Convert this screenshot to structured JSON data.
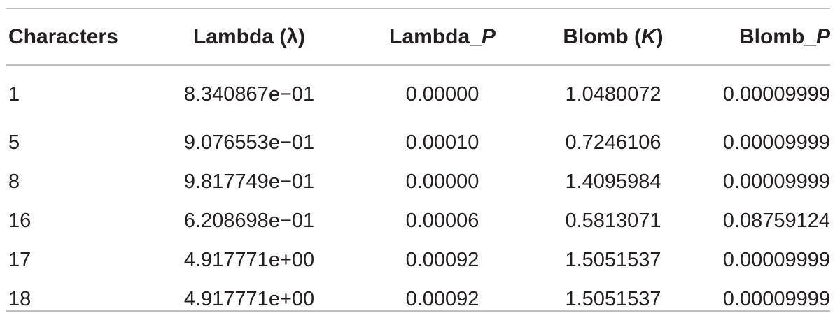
{
  "table": {
    "headers": {
      "characters": "Characters",
      "lambda": "Lambda (λ)",
      "lambda_p_prefix": "Lambda_",
      "lambda_p_italic": "P",
      "blomb_prefix": "Blomb (",
      "blomb_italic": "K",
      "blomb_suffix": ")",
      "blomb_p_prefix": "Blomb_",
      "blomb_p_italic": "P"
    },
    "rows": [
      {
        "characters": "1",
        "lambda": "8.340867e−01",
        "lambda_p": "0.00000",
        "blomb": "1.0480072",
        "blomb_p": "0.00009999"
      },
      {
        "characters": "5",
        "lambda": "9.076553e−01",
        "lambda_p": "0.00010",
        "blomb": "0.7246106",
        "blomb_p": "0.00009999"
      },
      {
        "characters": "8",
        "lambda": "9.817749e−01",
        "lambda_p": "0.00000",
        "blomb": "1.4095984",
        "blomb_p": "0.00009999"
      },
      {
        "characters": "16",
        "lambda": "6.208698e−01",
        "lambda_p": "0.00006",
        "blomb": "0.5813071",
        "blomb_p": "0.08759124"
      },
      {
        "characters": "17",
        "lambda": "4.917771e+00",
        "lambda_p": "0.00092",
        "blomb": "1.5051537",
        "blomb_p": "0.00009999"
      },
      {
        "characters": "18",
        "lambda": "4.917771e+00",
        "lambda_p": "0.00092",
        "blomb": "1.5051537",
        "blomb_p": "0.00009999"
      }
    ]
  }
}
